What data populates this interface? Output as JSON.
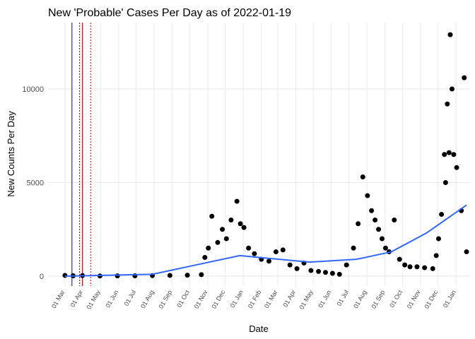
{
  "chart_data": {
    "type": "scatter",
    "title": "New 'Probable' Cases Per Day as of 2022-01-19",
    "x_label": "Date",
    "y_label": "New Counts Per Day",
    "xlim": [
      "2020-02-01",
      "2022-01-25"
    ],
    "ylim": [
      -528,
      13547
    ],
    "yticks": [
      0,
      5000,
      10000
    ],
    "xticks": [
      {
        "value": "2020-03-01",
        "label": "01 Mar"
      },
      {
        "value": "2020-04-01",
        "label": "01 Apr"
      },
      {
        "value": "2020-05-01",
        "label": "01 May"
      },
      {
        "value": "2020-06-01",
        "label": "01 Jun"
      },
      {
        "value": "2020-07-01",
        "label": "01 Jul"
      },
      {
        "value": "2020-08-01",
        "label": "01 Aug"
      },
      {
        "value": "2020-09-01",
        "label": "01 Sep"
      },
      {
        "value": "2020-10-01",
        "label": "01 Oct"
      },
      {
        "value": "2020-11-01",
        "label": "01 Nov"
      },
      {
        "value": "2020-12-01",
        "label": "01 Dec"
      },
      {
        "value": "2021-01-01",
        "label": "01 Jan"
      },
      {
        "value": "2021-02-01",
        "label": "01 Feb"
      },
      {
        "value": "2021-03-01",
        "label": "01 Mar"
      },
      {
        "value": "2021-04-01",
        "label": "01 Apr"
      },
      {
        "value": "2021-05-01",
        "label": "01 May"
      },
      {
        "value": "2021-06-01",
        "label": "01 Jun"
      },
      {
        "value": "2021-07-01",
        "label": "01 Jul"
      },
      {
        "value": "2021-08-01",
        "label": "01 Aug"
      },
      {
        "value": "2021-09-01",
        "label": "01 Sep"
      },
      {
        "value": "2021-10-01",
        "label": "01 Oct"
      },
      {
        "value": "2021-11-01",
        "label": "01 Nov"
      },
      {
        "value": "2021-12-01",
        "label": "01 Dec"
      },
      {
        "value": "2022-01-01",
        "label": "01 Jan"
      }
    ],
    "grid": true,
    "vlines": [
      {
        "x": "2020-03-13",
        "color": "#0000cc",
        "dash": false
      },
      {
        "x": "2020-03-26",
        "color": "#cc0000",
        "dash": true
      },
      {
        "x": "2020-03-31",
        "color": "#8b0000",
        "dash": false
      },
      {
        "x": "2020-04-14",
        "color": "#cc0000",
        "dash": true
      }
    ],
    "points": {
      "color": "#000000",
      "x": [
        "2020-03-01",
        "2020-03-15",
        "2020-03-31",
        "2020-04-30",
        "2020-05-30",
        "2020-06-29",
        "2020-07-29",
        "2020-08-28",
        "2020-09-27",
        "2020-10-21",
        "2020-10-27",
        "2020-11-02",
        "2020-11-08",
        "2020-11-18",
        "2020-11-26",
        "2020-12-03",
        "2020-12-11",
        "2020-12-21",
        "2020-12-27",
        "2021-01-02",
        "2021-01-10",
        "2021-01-20",
        "2021-02-01",
        "2021-02-14",
        "2021-02-26",
        "2021-03-10",
        "2021-03-22",
        "2021-04-03",
        "2021-04-15",
        "2021-04-27",
        "2021-05-10",
        "2021-05-22",
        "2021-06-03",
        "2021-06-15",
        "2021-06-27",
        "2021-07-09",
        "2021-07-17",
        "2021-07-25",
        "2021-08-02",
        "2021-08-09",
        "2021-08-15",
        "2021-08-21",
        "2021-08-27",
        "2021-09-02",
        "2021-09-08",
        "2021-09-17",
        "2021-09-26",
        "2021-10-05",
        "2021-10-14",
        "2021-10-26",
        "2021-11-08",
        "2021-11-22",
        "2021-11-28",
        "2021-12-02",
        "2021-12-07",
        "2021-12-12",
        "2021-12-14",
        "2021-12-17",
        "2021-12-20",
        "2021-12-22",
        "2021-12-25",
        "2021-12-28",
        "2022-01-02",
        "2022-01-10",
        "2022-01-15",
        "2022-01-19"
      ],
      "values": [
        40,
        20,
        30,
        10,
        15,
        20,
        30,
        40,
        50,
        80,
        1000,
        1500,
        3200,
        1800,
        2500,
        2000,
        3000,
        4000,
        2800,
        2600,
        1500,
        1200,
        900,
        800,
        1300,
        1400,
        600,
        400,
        700,
        300,
        250,
        200,
        150,
        100,
        600,
        1500,
        2800,
        5300,
        4300,
        3500,
        3000,
        2500,
        2000,
        1500,
        1300,
        3000,
        900,
        600,
        500,
        500,
        450,
        400,
        1100,
        2000,
        3300,
        6500,
        5000,
        9200,
        6600,
        12900,
        10000,
        6500,
        5800,
        3500,
        10600,
        1300
      ]
    },
    "trend": {
      "color": "#3366ff",
      "x": [
        "2020-03-01",
        "2020-07-29",
        "2020-10-27",
        "2020-12-26",
        "2021-02-14",
        "2021-04-25",
        "2021-07-14",
        "2021-09-12",
        "2021-11-11",
        "2022-01-19"
      ],
      "values": [
        0,
        100,
        700,
        1100,
        950,
        750,
        900,
        1300,
        2300,
        3800
      ]
    }
  }
}
